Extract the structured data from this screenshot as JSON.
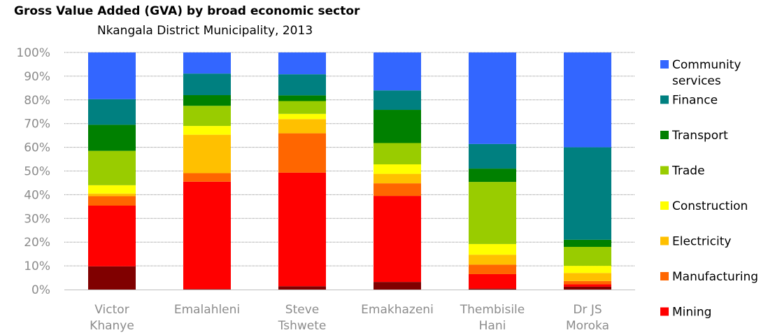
{
  "chart_data": {
    "type": "bar",
    "stacked": true,
    "title": "Gross Value Added (GVA) by broad economic sector",
    "subtitle": "Nkangala District Municipality, 2013",
    "ylim": [
      0,
      100
    ],
    "y_ticks": [
      "0%",
      "10%",
      "20%",
      "30%",
      "40%",
      "50%",
      "60%",
      "70%",
      "80%",
      "90%",
      "100%"
    ],
    "grid": true,
    "legend_position": "right",
    "categories": [
      [
        "Victor",
        "Khanye"
      ],
      [
        "Emalahleni"
      ],
      [
        "Steve",
        "Tshwete"
      ],
      [
        "Emakhazeni"
      ],
      [
        "Thembisile",
        "Hani"
      ],
      [
        "Dr JS",
        "Moroka"
      ]
    ],
    "series": [
      {
        "color": "#800000",
        "values": [
          9.8,
          0.2,
          1.4,
          3.2,
          0.4,
          1.2
        ]
      },
      {
        "name": "Mining",
        "color": "#ff0000",
        "values": [
          25.6,
          45.3,
          47.9,
          36.3,
          6.1,
          1.0
        ]
      },
      {
        "name": "Manufacturing",
        "color": "#ff6600",
        "values": [
          4.0,
          3.6,
          16.6,
          5.3,
          4.0,
          1.4
        ]
      },
      {
        "name": "Electricity",
        "color": "#ffc000",
        "values": [
          1.1,
          16.2,
          6.0,
          4.0,
          4.2,
          3.4
        ]
      },
      {
        "name": "Construction",
        "color": "#ffff00",
        "values": [
          3.5,
          3.7,
          2.2,
          4.0,
          4.5,
          3.0
        ]
      },
      {
        "name": "Trade",
        "color": "#99cc00",
        "values": [
          14.5,
          8.5,
          5.4,
          9.0,
          26.2,
          8.0
        ]
      },
      {
        "name": "Transport",
        "color": "#008000",
        "values": [
          11.0,
          4.5,
          2.4,
          14.0,
          5.6,
          3.0
        ]
      },
      {
        "name": "Finance",
        "color": "#008080",
        "values": [
          10.8,
          9.1,
          8.9,
          8.2,
          10.4,
          39.0
        ]
      },
      {
        "name": "Community services",
        "color": "#3366ff",
        "values": [
          19.7,
          8.9,
          9.2,
          16.0,
          38.6,
          40.0
        ]
      }
    ],
    "legend_entries": [
      {
        "label": [
          "Community",
          "services"
        ],
        "color": "#3366ff"
      },
      {
        "label": [
          "Finance"
        ],
        "color": "#008080"
      },
      {
        "label": [
          "Transport"
        ],
        "color": "#008000"
      },
      {
        "label": [
          "Trade"
        ],
        "color": "#99cc00"
      },
      {
        "label": [
          "Construction"
        ],
        "color": "#ffff00"
      },
      {
        "label": [
          "Electricity"
        ],
        "color": "#ffc000"
      },
      {
        "label": [
          "Manufacturing"
        ],
        "color": "#ff6600"
      },
      {
        "label": [
          "Mining"
        ],
        "color": "#ff0000"
      }
    ]
  }
}
